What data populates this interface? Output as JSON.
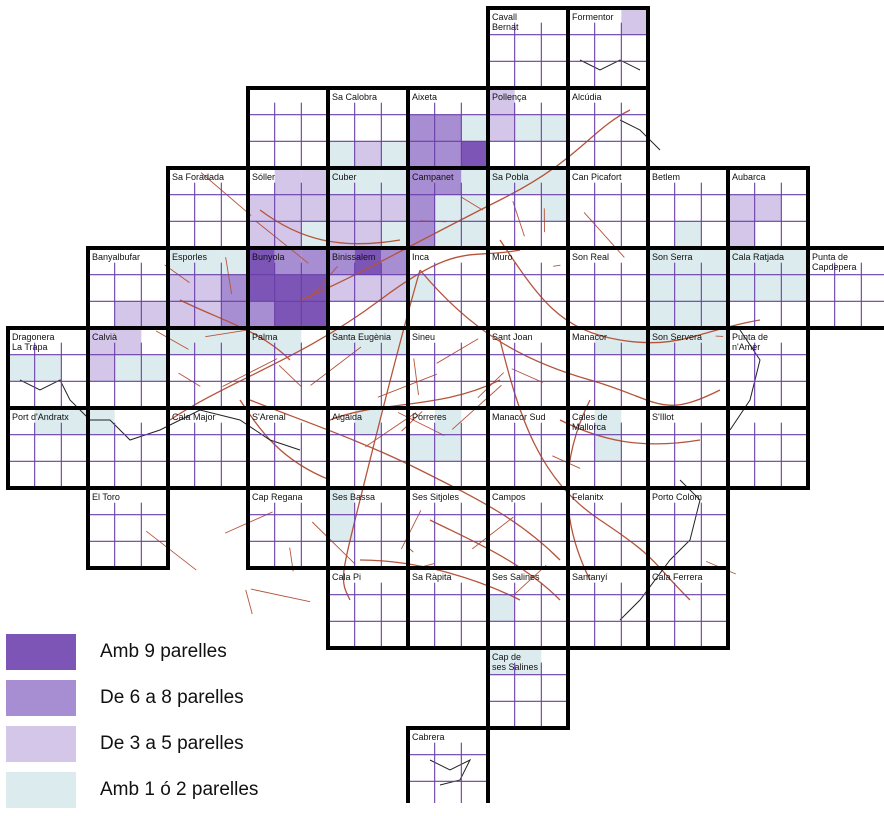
{
  "colors": {
    "c9": "#7c55b6",
    "c68": "#a78dd1",
    "c35": "#d3c6e8",
    "c12": "#dcebed",
    "inner_grid": "#6a3ea8",
    "frame": "#000000",
    "roads": "#b5543a"
  },
  "tiles": [
    {
      "label": "Cavall Bernat"
    },
    {
      "label": "Formentor"
    },
    {
      "label": "Sa Calobra"
    },
    {
      "label": "Aixeta"
    },
    {
      "label": "Pollença"
    },
    {
      "label": "Alcúdia"
    },
    {
      "label": "Sa Foradada"
    },
    {
      "label": "Sóller"
    },
    {
      "label": "Cuber"
    },
    {
      "label": "Campanet"
    },
    {
      "label": "Sa Pobla"
    },
    {
      "label": "Can Picafort"
    },
    {
      "label": "Betlem"
    },
    {
      "label": "Aubarca"
    },
    {
      "label": "Banyalbufar"
    },
    {
      "label": "Esporles"
    },
    {
      "label": "Bunyola"
    },
    {
      "label": "Binissalem"
    },
    {
      "label": "Inca"
    },
    {
      "label": "Muro"
    },
    {
      "label": "Son Real"
    },
    {
      "label": "Son Serra"
    },
    {
      "label": "Cala Ratjada"
    },
    {
      "label": "Punta de Capdepera"
    },
    {
      "label": "Dragonera La Trapa"
    },
    {
      "label": "Calvià"
    },
    {
      "label": "Palma"
    },
    {
      "label": "Santa Eugènia"
    },
    {
      "label": "Sineu"
    },
    {
      "label": "Sant Joan"
    },
    {
      "label": "Manacor"
    },
    {
      "label": "Son Servera"
    },
    {
      "label": "Punta de n'Amer"
    },
    {
      "label": "Port d'Andratx"
    },
    {
      "label": "Cala Major"
    },
    {
      "label": "S'Arenal"
    },
    {
      "label": "Algaida"
    },
    {
      "label": "Porreres"
    },
    {
      "label": "Manacor Sud"
    },
    {
      "label": "Cales de Mallorca"
    },
    {
      "label": "S'Illot"
    },
    {
      "label": "El Toro"
    },
    {
      "label": "Cap Regana"
    },
    {
      "label": "Ses Bassa"
    },
    {
      "label": "Ses Sitjoles"
    },
    {
      "label": "Campos"
    },
    {
      "label": "Felanitx"
    },
    {
      "label": "Porto Colom"
    },
    {
      "label": "Cala Pi"
    },
    {
      "label": "Sa Ràpita"
    },
    {
      "label": "Ses Salines"
    },
    {
      "label": "Santanyí"
    },
    {
      "label": "Cala Ferrera"
    },
    {
      "label": "Cap de ses Salines"
    },
    {
      "label": "Cabrera"
    }
  ],
  "legend": [
    {
      "label": "Amb 9 parelles",
      "color": "#7c55b6"
    },
    {
      "label": "De 6 a 8 parelles",
      "color": "#a78dd1"
    },
    {
      "label": "De 3 a 5 parelles",
      "color": "#d3c6e8"
    },
    {
      "label": "Amb 1 ó 2 parelles",
      "color": "#dcebed"
    }
  ]
}
